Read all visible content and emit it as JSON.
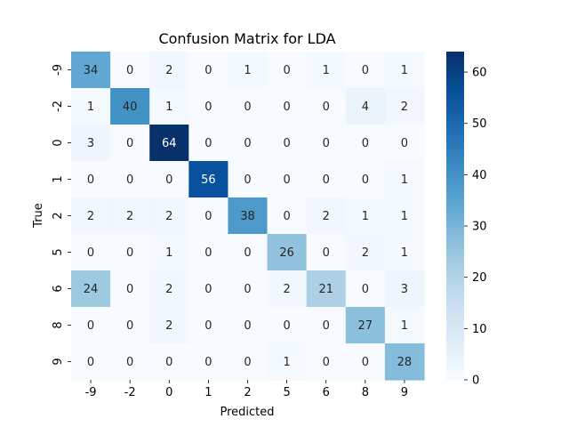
{
  "chart_data": {
    "type": "heatmap",
    "title": "Confusion Matrix for LDA",
    "xlabel": "Predicted",
    "ylabel": "True",
    "x_categories": [
      "-9",
      "-2",
      "0",
      "1",
      "2",
      "5",
      "6",
      "8",
      "9"
    ],
    "y_categories": [
      "-9",
      "-2",
      "0",
      "1",
      "2",
      "5",
      "6",
      "8",
      "9"
    ],
    "values": [
      [
        34,
        0,
        2,
        0,
        1,
        0,
        1,
        0,
        1
      ],
      [
        1,
        40,
        1,
        0,
        0,
        0,
        0,
        4,
        2
      ],
      [
        3,
        0,
        64,
        0,
        0,
        0,
        0,
        0,
        0
      ],
      [
        0,
        0,
        0,
        56,
        0,
        0,
        0,
        0,
        1
      ],
      [
        2,
        2,
        2,
        0,
        38,
        0,
        2,
        1,
        1
      ],
      [
        0,
        0,
        1,
        0,
        0,
        26,
        0,
        2,
        1
      ],
      [
        24,
        0,
        2,
        0,
        0,
        2,
        21,
        0,
        3
      ],
      [
        0,
        0,
        2,
        0,
        0,
        0,
        0,
        27,
        1
      ],
      [
        0,
        0,
        0,
        0,
        0,
        1,
        0,
        0,
        28
      ]
    ],
    "colorbar": {
      "colormap": "Blues",
      "range": [
        0,
        64
      ],
      "ticks": [
        0,
        10,
        20,
        30,
        40,
        50,
        60
      ]
    },
    "grid": false,
    "legend": "colorbar-right"
  }
}
